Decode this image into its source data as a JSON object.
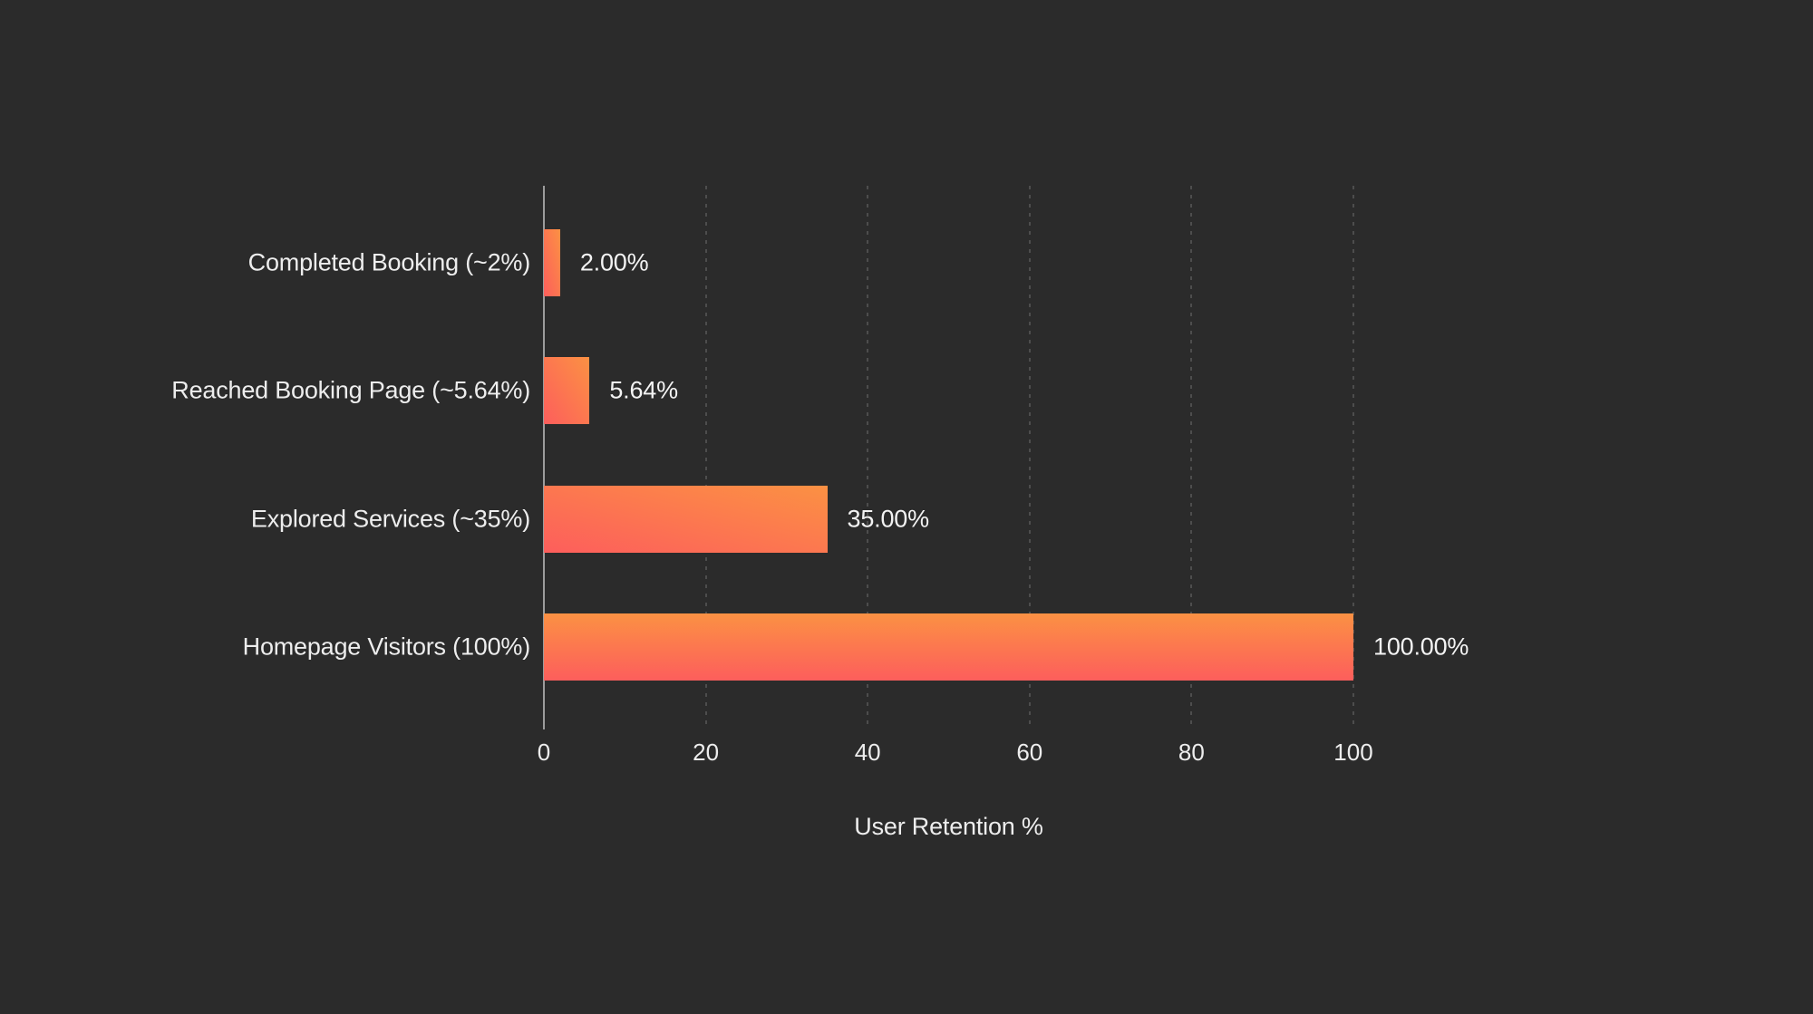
{
  "chart_data": {
    "type": "bar",
    "orientation": "horizontal",
    "xlabel": "User Retention %",
    "xlim": [
      0,
      100
    ],
    "x_ticks": [
      0,
      20,
      40,
      60,
      80,
      100
    ],
    "grid": "vertical-dashed",
    "legend": "none",
    "rows": [
      {
        "category": "Completed Booking (~2%)",
        "value": 2,
        "value_label": "2.00%"
      },
      {
        "category": "Reached Booking Page (~5.64%)",
        "value": 5.64,
        "value_label": "5.64%"
      },
      {
        "category": "Explored Services (~35%)",
        "value": 35,
        "value_label": "35.00%"
      },
      {
        "category": "Homepage Visitors (100%)",
        "value": 100,
        "value_label": "100.00%"
      }
    ]
  },
  "colors": {
    "background": "#2b2b2b",
    "bar_gradient_start": "#fd5e5c",
    "bar_gradient_end": "#fb9143",
    "axis_line": "#9c9c9c",
    "gridline": "#4d4d4d",
    "text": "#ededed"
  }
}
